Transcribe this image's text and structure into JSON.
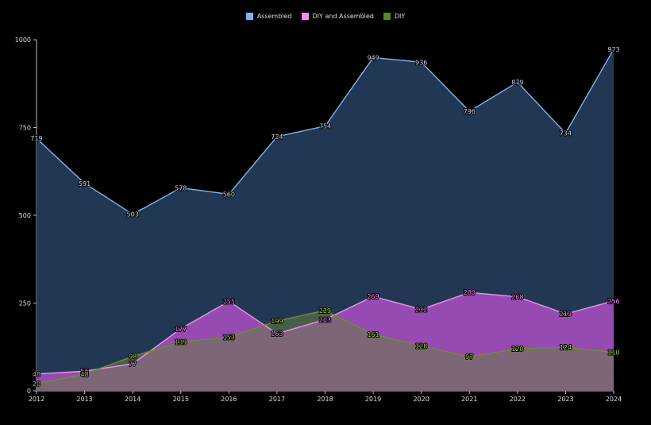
{
  "chart_data": {
    "type": "area",
    "categories": [
      "2012",
      "2013",
      "2014",
      "2015",
      "2016",
      "2017",
      "2018",
      "2019",
      "2020",
      "2021",
      "2022",
      "2023",
      "2024"
    ],
    "series": [
      {
        "name": "Assembled",
        "values": [
          719,
          591,
          503,
          578,
          560,
          724,
          754,
          949,
          936,
          796,
          879,
          734,
          973
        ],
        "color": "#7fb3f0",
        "fill": "#243a57",
        "label_color": "#c8d8ee"
      },
      {
        "name": "DIY and Assembled",
        "values": [
          48,
          56,
          77,
          177,
          255,
          163,
          203,
          269,
          232,
          280,
          268,
          219,
          256
        ],
        "color": "#ef8ff0",
        "fill": "#a94fc2",
        "label_color": "#f27ef2"
      },
      {
        "name": "DIY",
        "values": [
          20,
          48,
          98,
          139,
          153,
          199,
          229,
          161,
          128,
          97,
          120,
          124,
          110
        ],
        "color": "#6f8f2a",
        "fill": "#6a7e45",
        "label_color": "#a9d33a"
      }
    ],
    "yticks": [
      0,
      250,
      500,
      750,
      1000
    ],
    "ylim": [
      0,
      1000
    ],
    "grid": false,
    "legend_position": "top-center"
  }
}
